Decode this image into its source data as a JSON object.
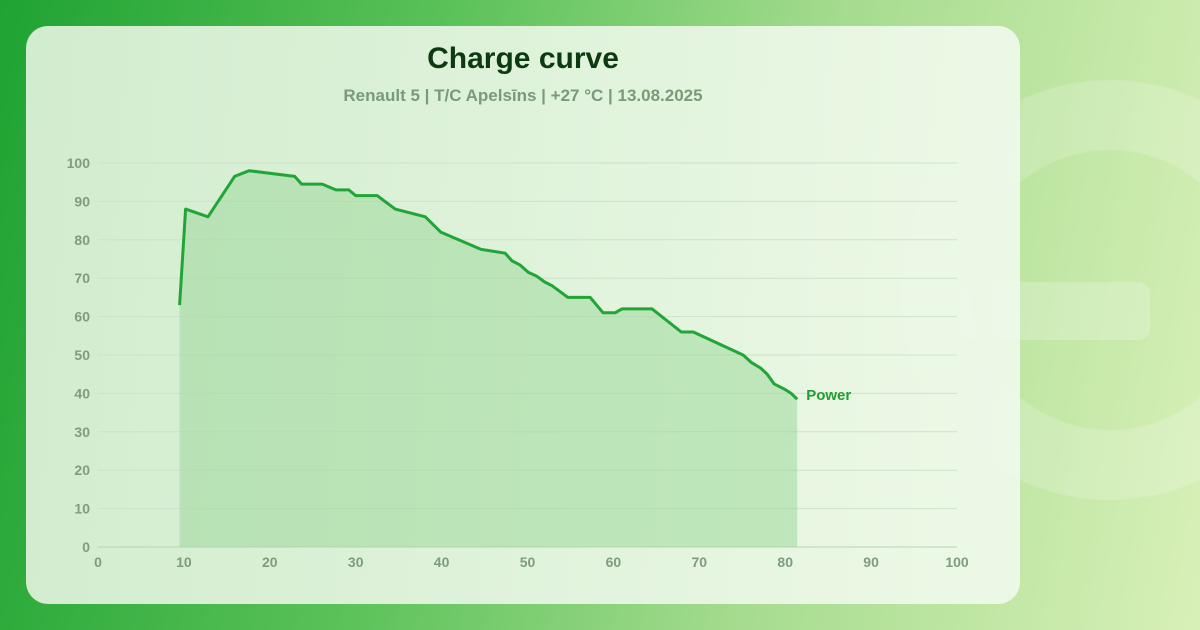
{
  "chart_data": {
    "type": "area",
    "title": "Charge curve",
    "subtitle": "Renault 5 | T/C Apelsīns | +27 °C | 13.08.2025",
    "xlabel": "",
    "ylabel": "",
    "xlim": [
      0,
      100
    ],
    "ylim": [
      0,
      100
    ],
    "x_ticks": [
      "0",
      "10",
      "20",
      "30",
      "40",
      "50",
      "60",
      "70",
      "80",
      "90",
      "100"
    ],
    "y_ticks": [
      "0",
      "10",
      "20",
      "30",
      "40",
      "50",
      "60",
      "70",
      "80",
      "90",
      "100"
    ],
    "grid": true,
    "colors": {
      "line": "#22a537",
      "fill": "#9fd89d"
    },
    "series": [
      {
        "name": "Power",
        "points": [
          [
            9.5,
            63
          ],
          [
            10.2,
            88
          ],
          [
            12.8,
            86
          ],
          [
            15.9,
            96.5
          ],
          [
            17.6,
            98
          ],
          [
            22.9,
            96.5
          ],
          [
            23.7,
            94.5
          ],
          [
            26.1,
            94.5
          ],
          [
            27.7,
            93
          ],
          [
            29.2,
            93
          ],
          [
            30,
            91.5
          ],
          [
            32.5,
            91.5
          ],
          [
            34.6,
            88
          ],
          [
            38.1,
            86
          ],
          [
            39.9,
            82
          ],
          [
            44.6,
            77.5
          ],
          [
            47.4,
            76.5
          ],
          [
            48.2,
            74.5
          ],
          [
            49.1,
            73.5
          ],
          [
            50.1,
            71.5
          ],
          [
            51.1,
            70.5
          ],
          [
            52,
            69
          ],
          [
            52.9,
            68
          ],
          [
            54.7,
            65
          ],
          [
            57.3,
            65
          ],
          [
            58.8,
            61
          ],
          [
            60.2,
            61
          ],
          [
            61,
            62
          ],
          [
            64.5,
            62
          ],
          [
            67.9,
            56
          ],
          [
            69.3,
            56
          ],
          [
            75.1,
            50
          ],
          [
            76.1,
            48
          ],
          [
            77.2,
            46.5
          ],
          [
            77.9,
            45
          ],
          [
            78.7,
            42.5
          ],
          [
            80,
            41
          ],
          [
            80.7,
            40
          ],
          [
            81.4,
            38.5
          ]
        ]
      }
    ]
  }
}
